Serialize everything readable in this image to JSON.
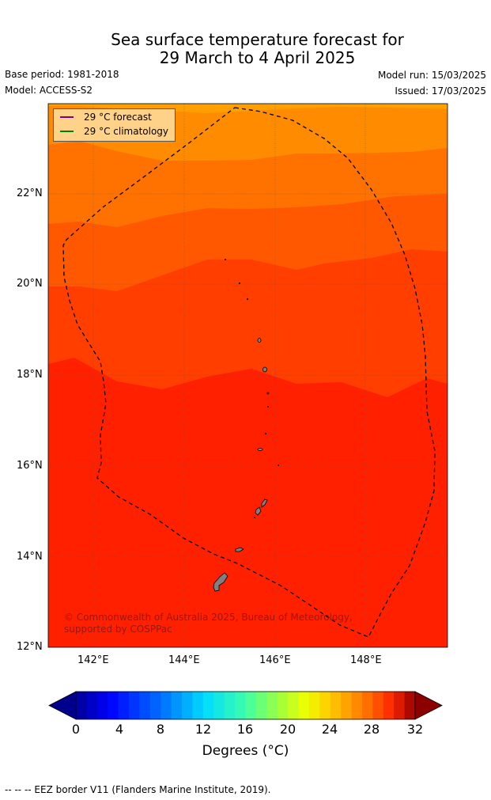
{
  "title_line1": "Sea surface temperature forecast for",
  "title_line2": "29 March to 4 April 2025",
  "base_period": "Base period: 1981-2018",
  "model": "Model: ACCESS-S2",
  "model_run": "Model run: 15/03/2025",
  "issued": "Issued: 17/03/2025",
  "legend": {
    "forecast": "29 °C  forecast",
    "climatology": "29 °C  climatology",
    "forecast_color": "#800080",
    "climatology_color": "#008000"
  },
  "copyright": "© Commonwealth of Australia 2025, Bureau of Meteorology, supported by COSPPac",
  "lat_ticks": [
    "22°N",
    "20°N",
    "18°N",
    "16°N",
    "14°N",
    "12°N"
  ],
  "lon_ticks": [
    "142°E",
    "144°E",
    "146°E",
    "148°E"
  ],
  "map_extent": {
    "lon": [
      141.0,
      149.8
    ],
    "lat": [
      12.0,
      24.0
    ]
  },
  "colorbar": {
    "ticks": [
      "0",
      "4",
      "8",
      "12",
      "16",
      "20",
      "24",
      "28",
      "32"
    ],
    "unit_label": "Degrees (°C)"
  },
  "footnote": "--  --  -- EEZ border V11 (Flanders Marine Institute, 2019).",
  "colors": {
    "sst_21": "#ff8c00",
    "sst_22": "#ff7200",
    "sst_23": "#ff5800",
    "sst_24": "#ff3e00",
    "sst_25": "#ff2000",
    "land": "#808080"
  }
}
